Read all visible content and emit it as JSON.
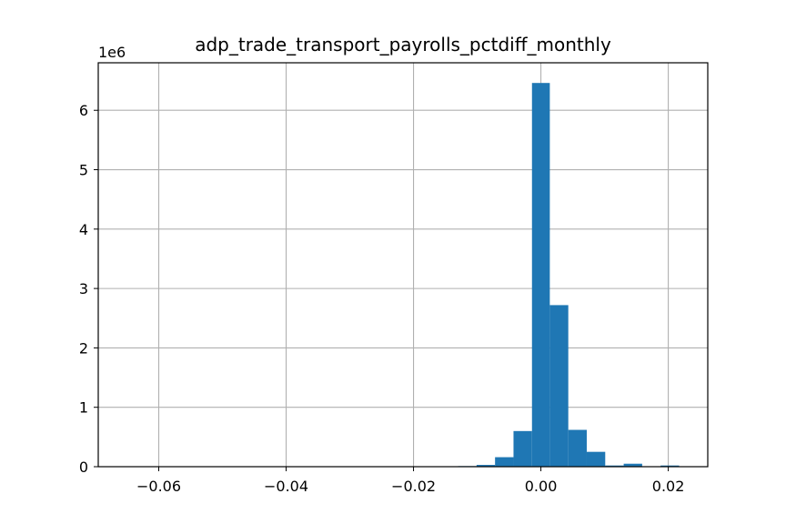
{
  "chart_data": {
    "type": "bar",
    "title": "adp_trade_transport_payrolls_pctdiff_monthly",
    "xlabel": "",
    "ylabel": "",
    "y_offset_label": "1e6",
    "y_scale": 1000000,
    "xlim": [
      -0.0695,
      0.0262
    ],
    "ylim": [
      0,
      6.8
    ],
    "grid": true,
    "bar_color": "#1f77b4",
    "x_ticks": [
      {
        "value": -0.06,
        "label": "−0.06"
      },
      {
        "value": -0.04,
        "label": "−0.04"
      },
      {
        "value": -0.02,
        "label": "−0.02"
      },
      {
        "value": 0.0,
        "label": "0.00"
      },
      {
        "value": 0.02,
        "label": "0.02"
      }
    ],
    "y_ticks": [
      {
        "value": 0,
        "label": "0"
      },
      {
        "value": 1,
        "label": "1"
      },
      {
        "value": 2,
        "label": "2"
      },
      {
        "value": 3,
        "label": "3"
      },
      {
        "value": 4,
        "label": "4"
      },
      {
        "value": 5,
        "label": "5"
      },
      {
        "value": 6,
        "label": "6"
      }
    ],
    "bins": [
      {
        "x0": -0.013,
        "x1": -0.0101,
        "value": 0.01
      },
      {
        "x0": -0.0101,
        "x1": -0.0072,
        "value": 0.03
      },
      {
        "x0": -0.0072,
        "x1": -0.0043,
        "value": 0.16
      },
      {
        "x0": -0.0043,
        "x1": -0.0014,
        "value": 0.6
      },
      {
        "x0": -0.0014,
        "x1": 0.0014,
        "value": 6.46
      },
      {
        "x0": 0.0014,
        "x1": 0.0043,
        "value": 2.72
      },
      {
        "x0": 0.0043,
        "x1": 0.0072,
        "value": 0.62
      },
      {
        "x0": 0.0072,
        "x1": 0.0101,
        "value": 0.25
      },
      {
        "x0": 0.0101,
        "x1": 0.013,
        "value": 0.02
      },
      {
        "x0": 0.013,
        "x1": 0.0159,
        "value": 0.05
      },
      {
        "x0": 0.0159,
        "x1": 0.0188,
        "value": 0.005
      },
      {
        "x0": 0.0188,
        "x1": 0.0217,
        "value": 0.02
      }
    ]
  }
}
